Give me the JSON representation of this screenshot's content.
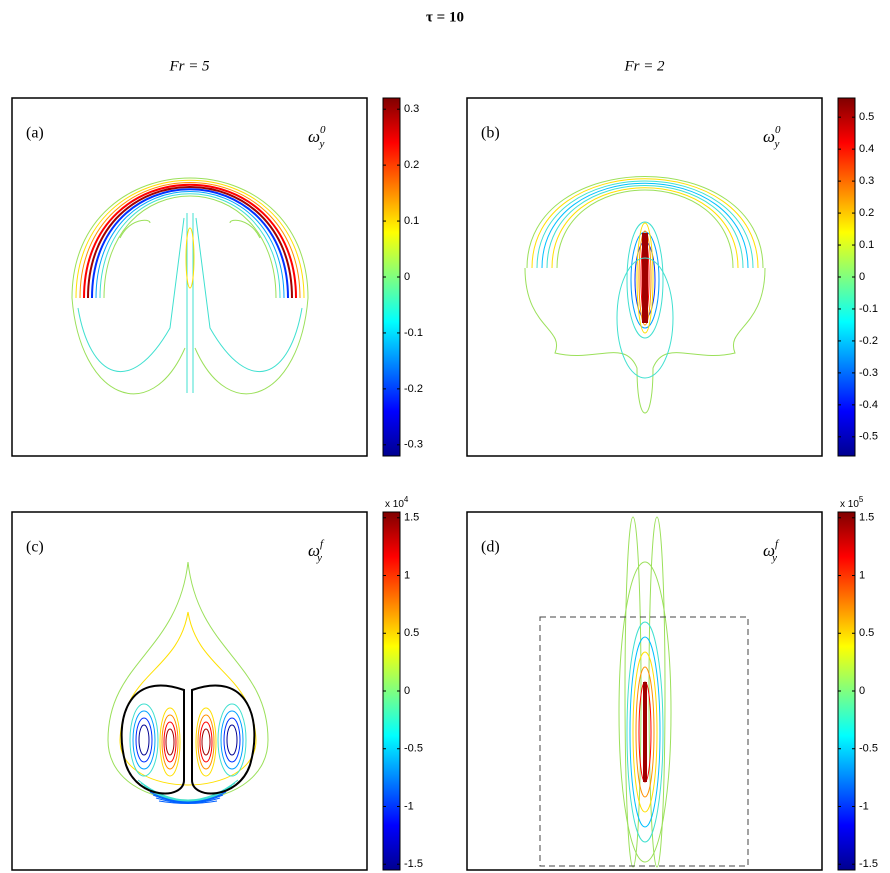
{
  "title": "τ = 10",
  "chart_data": [
    {
      "type": "contour",
      "title": "Fr = 5",
      "panel_label": "(a)",
      "symbol": "ω",
      "subscript": "y",
      "superscript": "0",
      "colormap": "jet",
      "clim": [
        -0.32,
        0.32
      ],
      "cticks": [
        -0.3,
        -0.2,
        -0.1,
        0,
        0.1,
        0.2,
        0.3
      ]
    },
    {
      "type": "contour",
      "title": "Fr = 2",
      "panel_label": "(b)",
      "symbol": "ω",
      "subscript": "y",
      "superscript": "0",
      "colormap": "jet",
      "clim": [
        -0.56,
        0.56
      ],
      "cticks": [
        -0.5,
        -0.4,
        -0.3,
        -0.2,
        -0.1,
        0,
        0.1,
        0.2,
        0.3,
        0.4,
        0.5
      ]
    },
    {
      "type": "contour",
      "panel_label": "(c)",
      "symbol": "ω",
      "subscript": "y",
      "superscript": "f",
      "colormap": "jet",
      "clim": [
        -1.55,
        1.55
      ],
      "cticks": [
        -1.5,
        -1,
        -0.5,
        0,
        0.5,
        1,
        1.5
      ],
      "multiplier": "x 10",
      "exponent": "4"
    },
    {
      "type": "contour",
      "panel_label": "(d)",
      "symbol": "ω",
      "subscript": "y",
      "superscript": "f",
      "colormap": "jet",
      "clim": [
        -1.55,
        1.55
      ],
      "cticks": [
        -1.5,
        -1,
        -0.5,
        0,
        0.5,
        1,
        1.5
      ],
      "multiplier": "x 10",
      "exponent": "5"
    }
  ]
}
